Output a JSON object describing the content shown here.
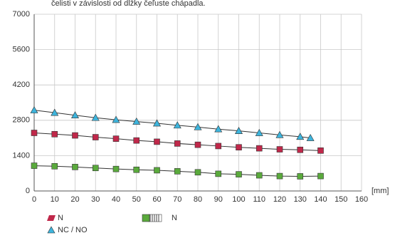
{
  "chart_data": {
    "type": "line",
    "title": "čelisti v závislosti od dĺžky čeľuste chápadla.",
    "x_unit": "[mm]",
    "xlim": [
      0,
      160
    ],
    "xticks": [
      0,
      10,
      20,
      30,
      40,
      50,
      60,
      70,
      80,
      90,
      100,
      110,
      120,
      130,
      140,
      150,
      160
    ],
    "ylim": [
      0,
      7000
    ],
    "yticks": [
      0,
      1400,
      2800,
      4200,
      5600,
      7000
    ],
    "grid": true,
    "line_color": "#333333",
    "series": [
      {
        "name": "NC / NO",
        "color": "#3db4dc",
        "marker": "triangle",
        "x": [
          0,
          10,
          20,
          30,
          40,
          50,
          60,
          70,
          80,
          90,
          100,
          110,
          120,
          130,
          135
        ],
        "values": [
          3200,
          3100,
          3000,
          2900,
          2820,
          2750,
          2680,
          2600,
          2530,
          2450,
          2380,
          2300,
          2220,
          2150,
          2100
        ]
      },
      {
        "name": "N",
        "color": "#c0284a",
        "marker": "square",
        "x": [
          0,
          10,
          20,
          30,
          40,
          50,
          60,
          70,
          80,
          90,
          100,
          110,
          120,
          130,
          140
        ],
        "values": [
          2300,
          2250,
          2200,
          2130,
          2070,
          2000,
          1950,
          1880,
          1830,
          1780,
          1730,
          1690,
          1650,
          1630,
          1600
        ]
      },
      {
        "name": "N",
        "color": "#5aaa3c",
        "marker": "square",
        "x": [
          0,
          10,
          20,
          30,
          40,
          50,
          60,
          70,
          80,
          90,
          100,
          110,
          120,
          130,
          140
        ],
        "values": [
          1000,
          980,
          950,
          910,
          870,
          840,
          820,
          780,
          740,
          680,
          660,
          620,
          590,
          580,
          590
        ]
      }
    ]
  }
}
